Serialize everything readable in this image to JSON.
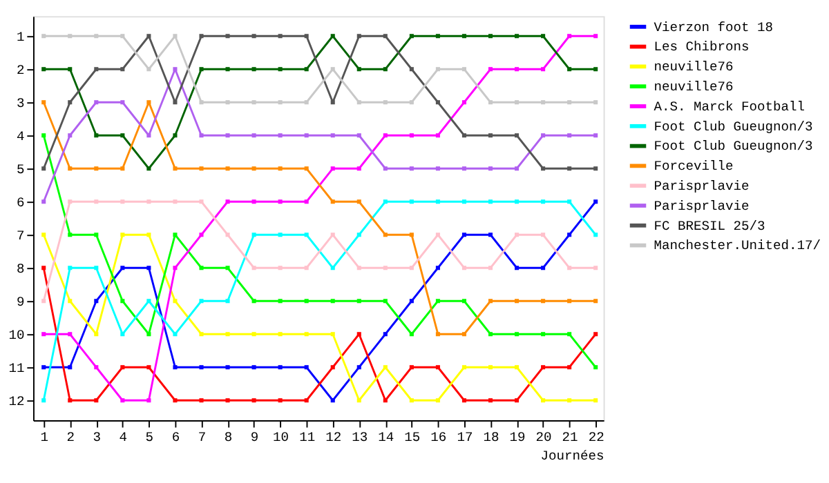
{
  "chart_data": {
    "type": "line",
    "xlabel": "Journées",
    "x": [
      1,
      2,
      3,
      4,
      5,
      6,
      7,
      8,
      9,
      10,
      11,
      12,
      13,
      14,
      15,
      16,
      17,
      18,
      19,
      20,
      21,
      22
    ],
    "xlim": [
      0.6,
      22.3
    ],
    "xticks": [
      1,
      2,
      3,
      4,
      5,
      6,
      7,
      8,
      9,
      10,
      11,
      12,
      13,
      14,
      15,
      16,
      17,
      18,
      19,
      20,
      21,
      22
    ],
    "ylim": [
      12.6,
      0.4
    ],
    "yticks": [
      1,
      2,
      3,
      4,
      5,
      6,
      7,
      8,
      9,
      10,
      11,
      12
    ],
    "grid": false,
    "legend": "right",
    "marker": "square",
    "line_style": "solid",
    "series": [
      {
        "name": "Vierzon foot 18",
        "color": "#0000ff",
        "values": [
          11,
          11,
          9,
          8,
          8,
          11,
          11,
          11,
          11,
          11,
          11,
          12,
          11,
          10,
          9,
          8,
          7,
          7,
          8,
          8,
          7,
          6
        ]
      },
      {
        "name": "Les Chibrons",
        "color": "#ff0000",
        "values": [
          8,
          12,
          12,
          11,
          11,
          12,
          12,
          12,
          12,
          12,
          12,
          11,
          10,
          12,
          11,
          11,
          12,
          12,
          12,
          11,
          11,
          10
        ]
      },
      {
        "name": "neuville76",
        "color": "#ffff00",
        "values": [
          7,
          9,
          10,
          7,
          7,
          9,
          10,
          10,
          10,
          10,
          10,
          10,
          12,
          11,
          12,
          12,
          11,
          11,
          11,
          12,
          12,
          12
        ]
      },
      {
        "name": "neuville76",
        "color": "#00ff00",
        "values": [
          4,
          7,
          7,
          9,
          10,
          7,
          8,
          8,
          9,
          9,
          9,
          9,
          9,
          9,
          10,
          9,
          9,
          10,
          10,
          10,
          10,
          11
        ]
      },
      {
        "name": "A.S. Marck Football",
        "color": "#ff00ff",
        "values": [
          10,
          10,
          11,
          12,
          12,
          8,
          7,
          6,
          6,
          6,
          6,
          5,
          5,
          4,
          4,
          4,
          3,
          2,
          2,
          2,
          1,
          1
        ]
      },
      {
        "name": "Foot Club Gueugnon/3",
        "color": "#00ffff",
        "values": [
          12,
          8,
          8,
          10,
          9,
          10,
          9,
          9,
          7,
          7,
          7,
          8,
          7,
          6,
          6,
          6,
          6,
          6,
          6,
          6,
          6,
          7
        ]
      },
      {
        "name": "Foot Club Gueugnon/3",
        "color": "#006400",
        "values": [
          2,
          2,
          4,
          4,
          5,
          4,
          2,
          2,
          2,
          2,
          2,
          1,
          2,
          2,
          1,
          1,
          1,
          1,
          1,
          1,
          2,
          2
        ]
      },
      {
        "name": "Forceville",
        "color": "#ff8c00",
        "values": [
          3,
          5,
          5,
          5,
          3,
          5,
          5,
          5,
          5,
          5,
          5,
          6,
          6,
          7,
          7,
          10,
          10,
          9,
          9,
          9,
          9,
          9
        ]
      },
      {
        "name": "Parisprlavie",
        "color": "#ffc0cb",
        "values": [
          9,
          6,
          6,
          6,
          6,
          6,
          6,
          7,
          8,
          8,
          8,
          7,
          8,
          8,
          8,
          7,
          8,
          8,
          7,
          7,
          8,
          8
        ]
      },
      {
        "name": "Parisprlavie",
        "color": "#b060f0",
        "values": [
          6,
          4,
          3,
          3,
          4,
          2,
          4,
          4,
          4,
          4,
          4,
          4,
          4,
          5,
          5,
          5,
          5,
          5,
          5,
          4,
          4,
          4
        ]
      },
      {
        "name": "FC BRESIL 25/3",
        "color": "#555555",
        "values": [
          5,
          3,
          2,
          2,
          1,
          3,
          1,
          1,
          1,
          1,
          1,
          3,
          1,
          1,
          2,
          3,
          4,
          4,
          4,
          5,
          5,
          5
        ]
      },
      {
        "name": "Manchester.United.17/",
        "color": "#c8c8c8",
        "values": [
          1,
          1,
          1,
          1,
          2,
          1,
          3,
          3,
          3,
          3,
          3,
          2,
          3,
          3,
          3,
          2,
          2,
          3,
          3,
          3,
          3,
          3
        ]
      }
    ]
  }
}
